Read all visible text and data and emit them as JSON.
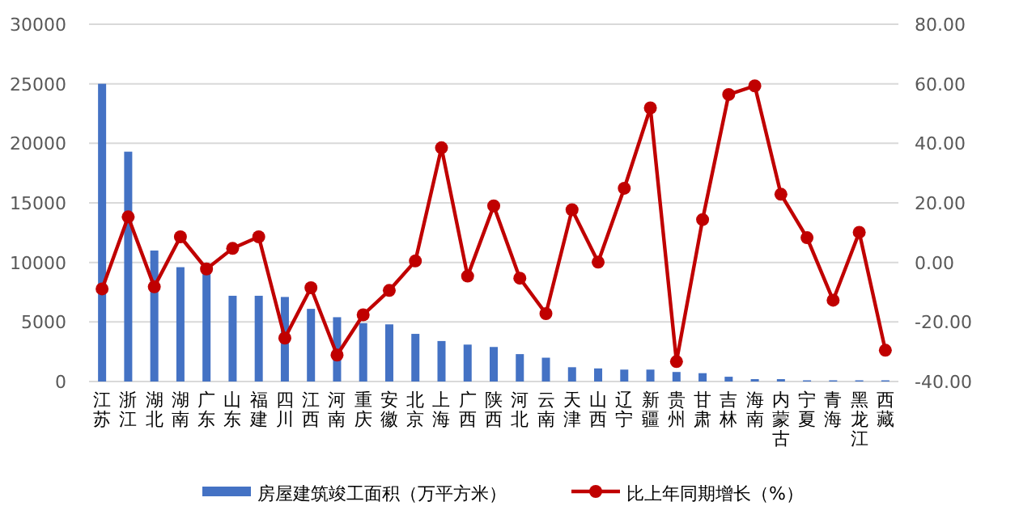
{
  "chart_data": {
    "type": "bar",
    "categories": [
      "江苏",
      "浙江",
      "湖北",
      "湖南",
      "广东",
      "山东",
      "福建",
      "四川",
      "江西",
      "河南",
      "重庆",
      "安徽",
      "北京",
      "上海",
      "广西",
      "陕西",
      "河北",
      "云南",
      "天津",
      "山西",
      "辽宁",
      "新疆",
      "贵州",
      "甘肃",
      "吉林",
      "海南",
      "内蒙古",
      "宁夏",
      "青海",
      "黑龙江",
      "西藏"
    ],
    "series": [
      {
        "name": "房屋建筑竣工面积（万平方米）",
        "color": "#4472c4",
        "values": [
          25000,
          19300,
          11000,
          9600,
          9400,
          7200,
          7200,
          7100,
          6100,
          5400,
          4900,
          4800,
          4000,
          3400,
          3100,
          2900,
          2300,
          2000,
          1200,
          1100,
          1000,
          1000,
          800,
          700,
          400,
          200,
          200,
          100,
          100,
          100,
          100
        ]
      },
      {
        "name": "比上年同期增长（%）",
        "type": "line",
        "axis": "y2",
        "color": "#c00000",
        "marker": "circle",
        "values": [
          -8.9,
          15.3,
          -8.2,
          8.6,
          -2.2,
          4.7,
          8.6,
          -25.4,
          -8.5,
          -31.1,
          -17.6,
          -9.4,
          0.5,
          38.5,
          -4.6,
          19.0,
          -5.3,
          -17.2,
          17.7,
          0.1,
          24.9,
          51.9,
          -33.3,
          14.4,
          56.4,
          59.3,
          22.9,
          8.3,
          -12.7,
          10.1,
          -29.5
        ]
      }
    ],
    "ylim": [
      0,
      30000
    ],
    "yticks": [
      0,
      5000,
      10000,
      15000,
      20000,
      25000,
      30000
    ],
    "y2lim": [
      -40,
      80
    ],
    "y2ticks": [
      {
        "value": -40,
        "label": "-40.00"
      },
      {
        "value": -20,
        "label": "-20.00"
      },
      {
        "value": 0,
        "label": "0.00"
      },
      {
        "value": 20,
        "label": "20.00"
      },
      {
        "value": 40,
        "label": "40.00"
      },
      {
        "value": 60,
        "label": "60.00"
      },
      {
        "value": 80,
        "label": "80.00"
      }
    ],
    "grid": "y",
    "legend": "bottom"
  }
}
